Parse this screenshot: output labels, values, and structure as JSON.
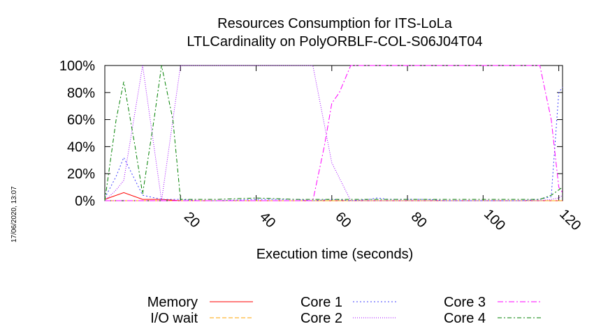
{
  "chart_data": {
    "type": "line",
    "title": "Resources Consumption for ITS-LoLa",
    "subtitle": "LTLCardinality on PolyORBLF-COL-S06J04T04",
    "xlabel": "Execution time (seconds)",
    "ylabel": "",
    "timestamp": "17/06/2020, 13:07",
    "xlim": [
      0,
      121
    ],
    "ylim": [
      0,
      100
    ],
    "x_ticks": [
      "20",
      "40",
      "60",
      "80",
      "100",
      "120"
    ],
    "x_tick_values": [
      20,
      40,
      60,
      80,
      100,
      120
    ],
    "y_ticks": [
      "0%",
      "20%",
      "40%",
      "60%",
      "80%",
      "100%"
    ],
    "y_tick_values": [
      0,
      20,
      40,
      60,
      80,
      100
    ],
    "grid": false,
    "legend": "bottom",
    "series": [
      {
        "name": "Memory",
        "color": "#ff0000",
        "dash": "none",
        "x": [
          0,
          5,
          10,
          15,
          20,
          25,
          30,
          35,
          40,
          45,
          50,
          55,
          60,
          65,
          70,
          75,
          80,
          85,
          90,
          95,
          100,
          105,
          110,
          115,
          120,
          121
        ],
        "y": [
          1,
          6,
          1,
          1,
          0,
          0,
          0,
          0,
          0,
          0,
          0,
          0,
          0,
          0,
          0,
          0,
          0,
          0,
          0,
          0,
          0,
          0,
          0,
          0,
          0,
          0
        ]
      },
      {
        "name": "I/O wait",
        "color": "#ffa500",
        "dash": "6,3",
        "x": [
          0,
          5,
          10,
          15,
          20,
          40,
          60,
          80,
          100,
          120,
          121
        ],
        "y": [
          0,
          0,
          0,
          0,
          0,
          0,
          0,
          0,
          0,
          0,
          0
        ]
      },
      {
        "name": "Core 1",
        "color": "#4040ff",
        "dash": "2,3",
        "x": [
          0,
          3,
          5,
          10,
          15,
          20,
          25,
          30,
          40,
          50,
          55,
          60,
          65,
          70,
          72,
          75,
          80,
          85,
          90,
          100,
          110,
          115,
          118,
          120,
          121
        ],
        "y": [
          2,
          18,
          32,
          4,
          1,
          1,
          0,
          0,
          1,
          1,
          0,
          1,
          0,
          1,
          2,
          1,
          1,
          1,
          0,
          0,
          0,
          1,
          3,
          80,
          84
        ]
      },
      {
        "name": "Core 2",
        "color": "#a000ff",
        "dash": "1,2",
        "x": [
          0,
          3,
          5,
          10,
          15,
          20,
          25,
          30,
          40,
          50,
          55,
          60,
          65,
          70,
          80,
          90,
          100,
          110,
          115,
          118,
          120,
          121
        ],
        "y": [
          0,
          8,
          15,
          100,
          0,
          100,
          100,
          100,
          100,
          100,
          100,
          28,
          0,
          0,
          0,
          0,
          0,
          0,
          0,
          1,
          2,
          4
        ]
      },
      {
        "name": "Core 3",
        "color": "#ff00ff",
        "dash": "8,3,2,3",
        "x": [
          0,
          20,
          21,
          30,
          40,
          50,
          55,
          58,
          60,
          62,
          65,
          70,
          80,
          90,
          100,
          110,
          115,
          118,
          120,
          121
        ],
        "y": [
          0,
          0,
          0,
          0,
          0,
          0,
          0,
          40,
          72,
          80,
          100,
          100,
          100,
          100,
          100,
          100,
          100,
          60,
          10,
          6
        ]
      },
      {
        "name": "Core 4",
        "color": "#008000",
        "dash": "6,3,2,3",
        "x": [
          0,
          3,
          5,
          8,
          10,
          13,
          15,
          18,
          20,
          30,
          40,
          50,
          60,
          70,
          80,
          90,
          100,
          110,
          115,
          118,
          120,
          121
        ],
        "y": [
          0,
          60,
          88,
          40,
          5,
          60,
          100,
          60,
          1,
          1,
          2,
          1,
          1,
          1,
          1,
          1,
          1,
          1,
          1,
          4,
          8,
          10
        ]
      }
    ]
  }
}
